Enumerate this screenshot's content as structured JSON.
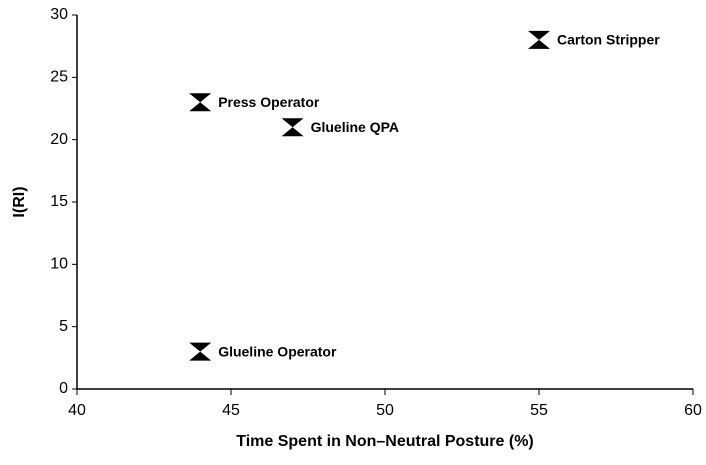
{
  "chart_data": {
    "type": "scatter",
    "x_label": "Time Spent in Non–Neutral Posture (%)",
    "y_label": "I(RI)",
    "points": [
      {
        "label": "Press Operator",
        "x": 44,
        "y": 23
      },
      {
        "label": "Glueline QPA",
        "x": 47,
        "y": 21
      },
      {
        "label": "Carton Stripper",
        "x": 55,
        "y": 28
      },
      {
        "label": "Glueline Operator",
        "x": 44,
        "y": 3
      }
    ],
    "color": "#000000",
    "xlim": [
      40,
      60
    ],
    "xticks": [
      40,
      45,
      50,
      55,
      60
    ],
    "ylim": [
      0,
      30
    ],
    "yticks": [
      0,
      5,
      10,
      15,
      20,
      25,
      30
    ],
    "grid": false
  }
}
